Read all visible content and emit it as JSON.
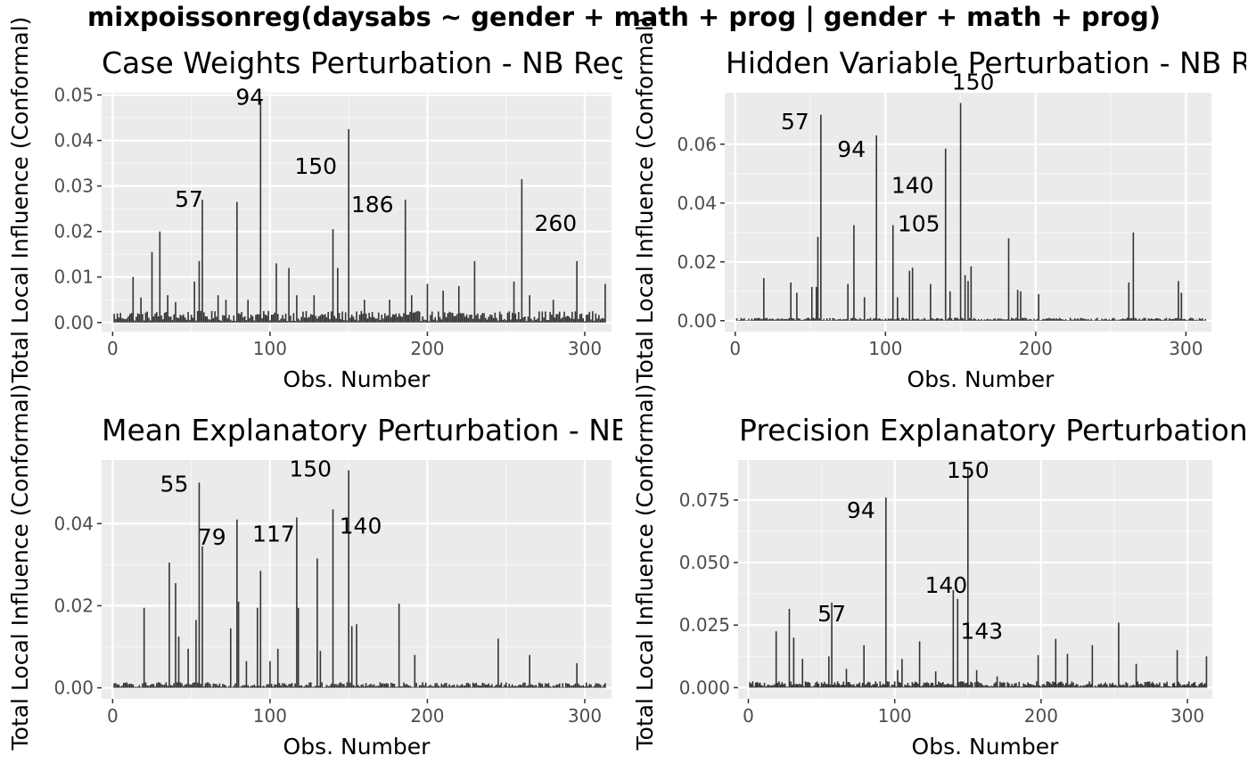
{
  "title": "mixpoissonreg(daysabs ~ gender + math + prog | gender + math + prog)",
  "chart_data": [
    {
      "type": "bar",
      "title": "Case Weights Perturbation - NB Regression",
      "xlabel": "Obs. Number",
      "ylabel": "Total Local Influence (Conformal)",
      "xlim": [
        -7,
        317
      ],
      "ylim": [
        -0.002,
        0.0505
      ],
      "xticks": [
        0,
        100,
        200,
        300
      ],
      "yticks": [
        0,
        0.01,
        0.02,
        0.03,
        0.04,
        0.05
      ],
      "ytick_labels": [
        "0.00",
        "0.01",
        "0.02",
        "0.03",
        "0.04",
        "0.05"
      ],
      "grid": true,
      "baseline": 0.0015,
      "peaks": [
        [
          13,
          0.01
        ],
        [
          18,
          0.0055
        ],
        [
          25,
          0.0155
        ],
        [
          30,
          0.02
        ],
        [
          35,
          0.006
        ],
        [
          40,
          0.0045
        ],
        [
          52,
          0.009
        ],
        [
          55,
          0.0135
        ],
        [
          57,
          0.027
        ],
        [
          67,
          0.006
        ],
        [
          72,
          0.005
        ],
        [
          79,
          0.0265
        ],
        [
          86,
          0.005
        ],
        [
          94,
          0.049
        ],
        [
          104,
          0.013
        ],
        [
          112,
          0.012
        ],
        [
          117,
          0.006
        ],
        [
          128,
          0.006
        ],
        [
          140,
          0.0205
        ],
        [
          143,
          0.012
        ],
        [
          150,
          0.0425
        ],
        [
          160,
          0.005
        ],
        [
          176,
          0.005
        ],
        [
          186,
          0.027
        ],
        [
          190,
          0.006
        ],
        [
          200,
          0.0085
        ],
        [
          210,
          0.007
        ],
        [
          220,
          0.008
        ],
        [
          230,
          0.0135
        ],
        [
          255,
          0.009
        ],
        [
          260,
          0.0315
        ],
        [
          265,
          0.006
        ],
        [
          280,
          0.005
        ],
        [
          295,
          0.0135
        ],
        [
          313,
          0.0085
        ]
      ],
      "annotations": [
        {
          "label": "94",
          "obs": 94,
          "value": 0.049
        },
        {
          "label": "150",
          "obs": 150,
          "value": 0.0425
        },
        {
          "label": "260",
          "obs": 260,
          "value": 0.0315
        },
        {
          "label": "57",
          "obs": 57,
          "value": 0.027
        },
        {
          "label": "186",
          "obs": 186,
          "value": 0.027
        }
      ]
    },
    {
      "type": "bar",
      "title": "Hidden Variable Perturbation - NB Regression",
      "xlabel": "Obs. Number",
      "ylabel": "Total Local Influence (Conformal)",
      "xlim": [
        -7,
        317
      ],
      "ylim": [
        -0.0037,
        0.0775
      ],
      "xticks": [
        0,
        100,
        200,
        300
      ],
      "yticks": [
        0,
        0.02,
        0.04,
        0.06
      ],
      "ytick_labels": [
        "0.00",
        "0.02",
        "0.04",
        "0.06"
      ],
      "grid": true,
      "baseline": 0.0006,
      "peaks": [
        [
          19,
          0.0145
        ],
        [
          37,
          0.013
        ],
        [
          41,
          0.0095
        ],
        [
          51,
          0.0115
        ],
        [
          54,
          0.0115
        ],
        [
          55,
          0.0285
        ],
        [
          57,
          0.07
        ],
        [
          75,
          0.0125
        ],
        [
          79,
          0.0325
        ],
        [
          86,
          0.008
        ],
        [
          94,
          0.063
        ],
        [
          105,
          0.0325
        ],
        [
          108,
          0.008
        ],
        [
          116,
          0.017
        ],
        [
          118,
          0.018
        ],
        [
          130,
          0.0125
        ],
        [
          140,
          0.0585
        ],
        [
          143,
          0.01
        ],
        [
          150,
          0.074
        ],
        [
          153,
          0.0155
        ],
        [
          155,
          0.0135
        ],
        [
          157,
          0.0185
        ],
        [
          182,
          0.028
        ],
        [
          188,
          0.0105
        ],
        [
          190,
          0.01
        ],
        [
          202,
          0.009
        ],
        [
          262,
          0.013
        ],
        [
          265,
          0.03
        ],
        [
          295,
          0.0135
        ],
        [
          297,
          0.0095
        ]
      ],
      "annotations": [
        {
          "label": "150",
          "obs": 150,
          "value": 0.074
        },
        {
          "label": "57",
          "obs": 57,
          "value": 0.07
        },
        {
          "label": "94",
          "obs": 94,
          "value": 0.063
        },
        {
          "label": "140",
          "obs": 140,
          "value": 0.0585
        },
        {
          "label": "105",
          "obs": 105,
          "value": 0.0325
        }
      ]
    },
    {
      "type": "bar",
      "title": "Mean Explanatory Perturbation - NB Regression",
      "xlabel": "Obs. Number",
      "ylabel": "Total Local Influence (Conformal)",
      "xlim": [
        -7,
        317
      ],
      "ylim": [
        -0.0027,
        0.0555
      ],
      "xticks": [
        0,
        100,
        200,
        300
      ],
      "yticks": [
        0,
        0.02,
        0.04
      ],
      "ytick_labels": [
        "0.00",
        "0.02",
        "0.04"
      ],
      "grid": true,
      "baseline": 0.0008,
      "peaks": [
        [
          20,
          0.0195
        ],
        [
          36,
          0.0305
        ],
        [
          40,
          0.0255
        ],
        [
          42,
          0.0125
        ],
        [
          48,
          0.0095
        ],
        [
          53,
          0.0165
        ],
        [
          55,
          0.05
        ],
        [
          57,
          0.0345
        ],
        [
          75,
          0.0145
        ],
        [
          79,
          0.041
        ],
        [
          80,
          0.021
        ],
        [
          85,
          0.0065
        ],
        [
          92,
          0.0195
        ],
        [
          94,
          0.0285
        ],
        [
          100,
          0.0065
        ],
        [
          105,
          0.0095
        ],
        [
          117,
          0.0415
        ],
        [
          118,
          0.0195
        ],
        [
          130,
          0.0315
        ],
        [
          132,
          0.009
        ],
        [
          140,
          0.0435
        ],
        [
          150,
          0.053
        ],
        [
          152,
          0.015
        ],
        [
          155,
          0.0155
        ],
        [
          182,
          0.0205
        ],
        [
          192,
          0.008
        ],
        [
          245,
          0.012
        ],
        [
          265,
          0.008
        ],
        [
          295,
          0.006
        ]
      ],
      "annotations": [
        {
          "label": "150",
          "obs": 150,
          "value": 0.053
        },
        {
          "label": "55",
          "obs": 55,
          "value": 0.05
        },
        {
          "label": "140",
          "obs": 140,
          "value": 0.0435
        },
        {
          "label": "117",
          "obs": 117,
          "value": 0.0415
        },
        {
          "label": "79",
          "obs": 79,
          "value": 0.041
        }
      ]
    },
    {
      "type": "bar",
      "title": "Precision Explanatory Perturbation - NB Regression",
      "xlabel": "Obs. Number",
      "ylabel": "Total Local Influence (Conformal)",
      "xlim": [
        -7,
        317
      ],
      "ylim": [
        -0.0045,
        0.091
      ],
      "xticks": [
        0,
        100,
        200,
        300
      ],
      "yticks": [
        0,
        0.025,
        0.05,
        0.075
      ],
      "ytick_labels": [
        "0.000",
        "0.025",
        "0.050",
        "0.075"
      ],
      "grid": true,
      "baseline": 0.0015,
      "peaks": [
        [
          19,
          0.0225
        ],
        [
          28,
          0.0315
        ],
        [
          31,
          0.02
        ],
        [
          37,
          0.0115
        ],
        [
          55,
          0.0125
        ],
        [
          57,
          0.034
        ],
        [
          67,
          0.0075
        ],
        [
          79,
          0.017
        ],
        [
          94,
          0.076
        ],
        [
          102,
          0.007
        ],
        [
          105,
          0.0115
        ],
        [
          117,
          0.0185
        ],
        [
          128,
          0.0065
        ],
        [
          140,
          0.039
        ],
        [
          143,
          0.0355
        ],
        [
          150,
          0.0875
        ],
        [
          156,
          0.007
        ],
        [
          170,
          0.0045
        ],
        [
          198,
          0.013
        ],
        [
          210,
          0.0195
        ],
        [
          218,
          0.0135
        ],
        [
          235,
          0.017
        ],
        [
          253,
          0.026
        ],
        [
          265,
          0.0095
        ],
        [
          293,
          0.015
        ],
        [
          313,
          0.0125
        ]
      ],
      "annotations": [
        {
          "label": "150",
          "obs": 150,
          "value": 0.0875
        },
        {
          "label": "94",
          "obs": 94,
          "value": 0.076
        },
        {
          "label": "140",
          "obs": 140,
          "value": 0.039
        },
        {
          "label": "143",
          "obs": 143,
          "value": 0.0355
        },
        {
          "label": "57",
          "obs": 57,
          "value": 0.034
        }
      ]
    }
  ]
}
